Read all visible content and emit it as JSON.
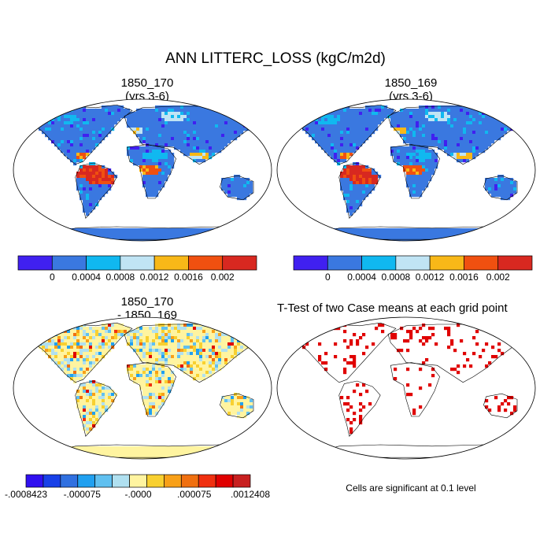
{
  "figure": {
    "title": "ANN LITTERC_LOSS (kgC/m2d)",
    "note": "Cells are significant at 0.1 level"
  },
  "chart_data": [
    {
      "type": "heatmap",
      "panel": "case1",
      "title_line1": "1850_170",
      "title_line2": "(yrs 3-6)",
      "projection": "Robinson",
      "colorbar": {
        "colors": [
          "#4020f0",
          "#3a78e0",
          "#10b8f0",
          "#c0e4f4",
          "#f8b818",
          "#f05010",
          "#d82820"
        ],
        "tick_labels": [
          "0",
          "0.0004",
          "0.0008",
          "0.0012",
          "0.0016",
          "0.002"
        ]
      }
    },
    {
      "type": "heatmap",
      "panel": "case2",
      "title_line1": "1850_169",
      "title_line2": "(yrs 3-6)",
      "projection": "Robinson",
      "colorbar": {
        "colors": [
          "#4020f0",
          "#3a78e0",
          "#10b8f0",
          "#c0e4f4",
          "#f8b818",
          "#f05010",
          "#d82820"
        ],
        "tick_labels": [
          "0",
          "0.0004",
          "0.0008",
          "0.0012",
          "0.0016",
          "0.002"
        ]
      }
    },
    {
      "type": "heatmap",
      "panel": "difference",
      "title_line1": "1850_170",
      "title_line2": "- 1850_169",
      "projection": "Robinson",
      "colorbar": {
        "colors": [
          "#3010f0",
          "#1840e8",
          "#3070e0",
          "#20a0f0",
          "#60c0f0",
          "#b0e0f0",
          "#fff4a0",
          "#f8d030",
          "#f8a018",
          "#f07010",
          "#f03010",
          "#e00000",
          "#c82020"
        ],
        "tick_labels": [
          "-.0008423",
          "-.000075",
          "-.0000",
          ".000075",
          ".0012408"
        ]
      }
    },
    {
      "type": "heatmap",
      "panel": "ttest",
      "title_line1": "T-Test of two Case means at each grid point",
      "projection": "Robinson",
      "significant_color": "#e00000"
    }
  ]
}
